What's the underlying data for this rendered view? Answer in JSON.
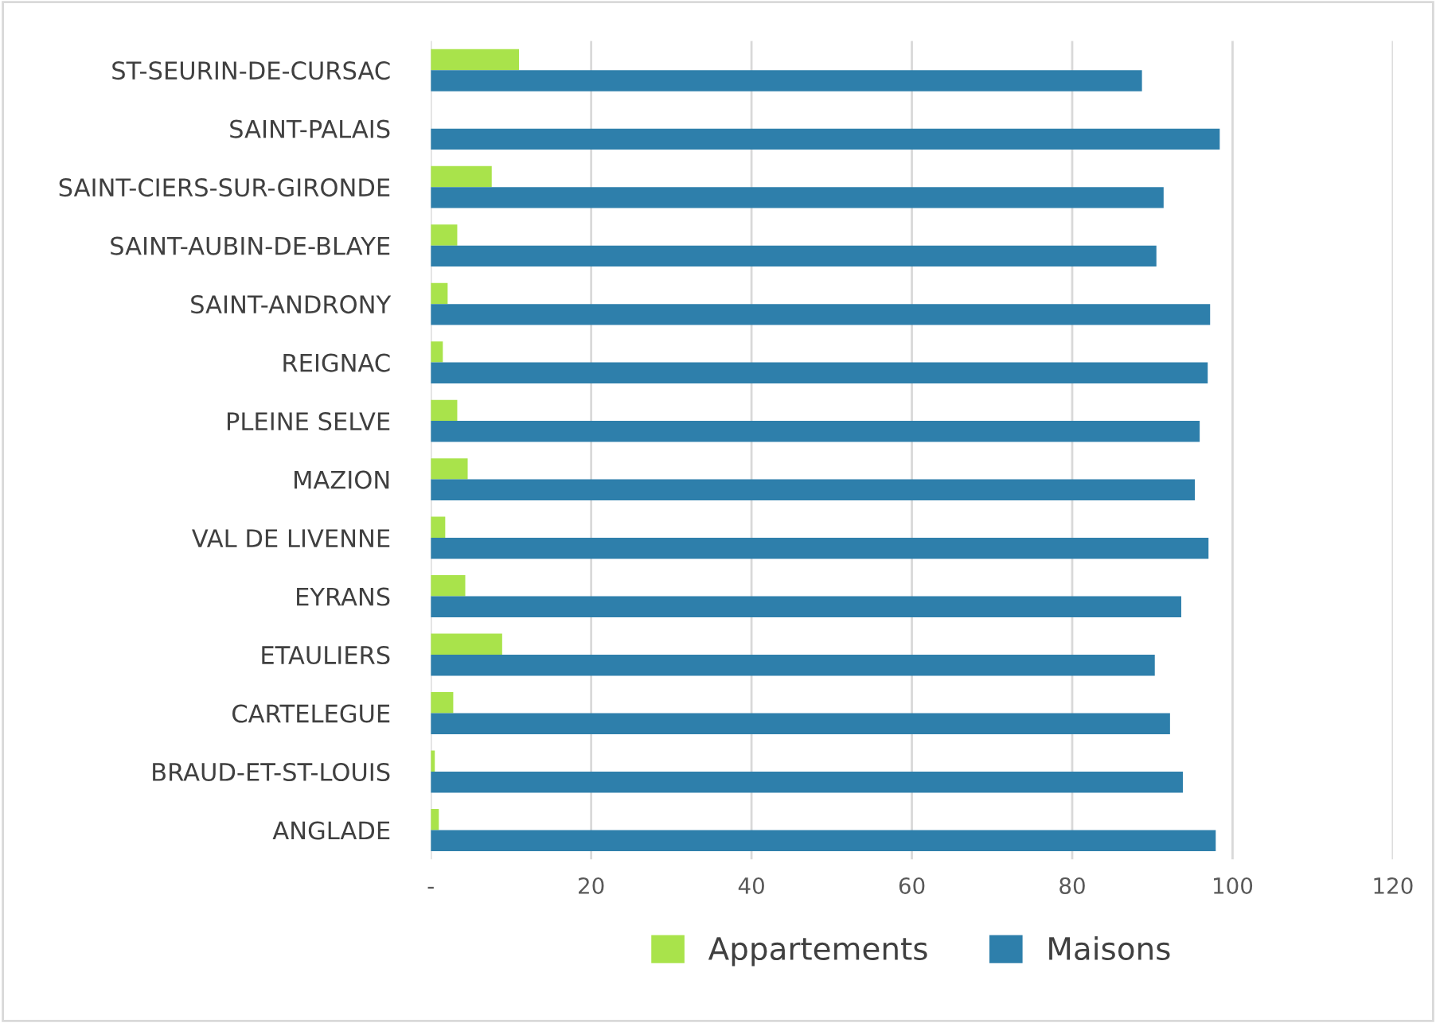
{
  "chart_data": {
    "type": "bar",
    "orientation": "horizontal",
    "categories": [
      "ST-SEURIN-DE-CURSAC",
      "SAINT-PALAIS",
      "SAINT-CIERS-SUR-GIRONDE",
      "SAINT-AUBIN-DE-BLAYE",
      "SAINT-ANDRONY",
      "REIGNAC",
      "PLEINE SELVE",
      "MAZION",
      "VAL DE LIVENNE",
      "EYRANS",
      "ETAULIERS",
      "CARTELEGUE",
      "BRAUD-ET-ST-LOUIS",
      "ANGLADE"
    ],
    "series": [
      {
        "name": "Appartements",
        "color": "#a9e34b",
        "values": [
          11.0,
          0,
          7.6,
          3.3,
          2.1,
          1.5,
          3.3,
          4.6,
          1.8,
          4.3,
          8.9,
          2.8,
          0.5,
          1.0
        ]
      },
      {
        "name": "Maisons",
        "color": "#2e7fab",
        "values": [
          88.7,
          98.4,
          91.4,
          90.5,
          97.2,
          96.9,
          95.9,
          95.3,
          97.0,
          93.6,
          90.3,
          92.2,
          93.8,
          97.9
        ]
      }
    ],
    "xlim": [
      0,
      120
    ],
    "xticks": [
      {
        "value": 0,
        "label": "-"
      },
      20,
      40,
      60,
      80,
      100,
      120
    ],
    "grid": "x",
    "legend": "bottom"
  }
}
